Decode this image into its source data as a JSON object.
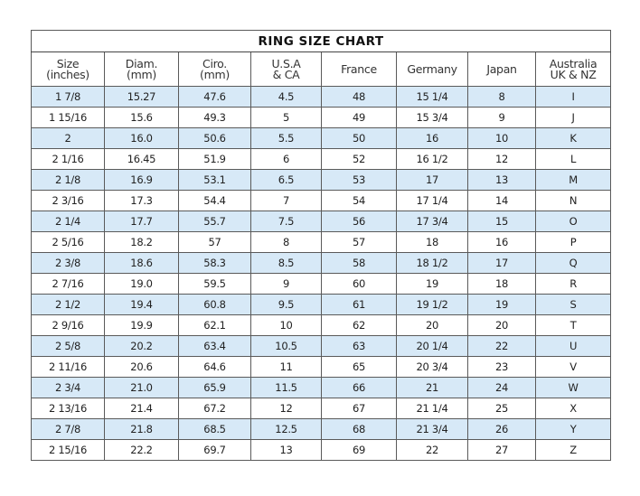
{
  "title": "RING SIZE CHART",
  "headers": [
    [
      "Size",
      "(inches)"
    ],
    [
      "Diam.",
      "(mm)"
    ],
    [
      "Ciro.",
      "(mm)"
    ],
    [
      "U.S.A",
      "& CA"
    ],
    [
      "France"
    ],
    [
      "Germany"
    ],
    [
      "Japan"
    ],
    [
      "Australia",
      "UK & NZ"
    ]
  ],
  "row_highlight_color": "#d7e9f7",
  "rows": [
    [
      "1 7/8",
      "15.27",
      "47.6",
      "4.5",
      "48",
      "15 1/4",
      "8",
      "I"
    ],
    [
      "1 15/16",
      "15.6",
      "49.3",
      "5",
      "49",
      "15 3/4",
      "9",
      "J"
    ],
    [
      "2",
      "16.0",
      "50.6",
      "5.5",
      "50",
      "16",
      "10",
      "K"
    ],
    [
      "2 1/16",
      "16.45",
      "51.9",
      "6",
      "52",
      "16 1/2",
      "12",
      "L"
    ],
    [
      "2 1/8",
      "16.9",
      "53.1",
      "6.5",
      "53",
      "17",
      "13",
      "M"
    ],
    [
      "2 3/16",
      "17.3",
      "54.4",
      "7",
      "54",
      "17 1/4",
      "14",
      "N"
    ],
    [
      "2 1/4",
      "17.7",
      "55.7",
      "7.5",
      "56",
      "17 3/4",
      "15",
      "O"
    ],
    [
      "2 5/16",
      "18.2",
      "57",
      "8",
      "57",
      "18",
      "16",
      "P"
    ],
    [
      "2 3/8",
      "18.6",
      "58.3",
      "8.5",
      "58",
      "18 1/2",
      "17",
      "Q"
    ],
    [
      "2 7/16",
      "19.0",
      "59.5",
      "9",
      "60",
      "19",
      "18",
      "R"
    ],
    [
      "2 1/2",
      "19.4",
      "60.8",
      "9.5",
      "61",
      "19 1/2",
      "19",
      "S"
    ],
    [
      "2 9/16",
      "19.9",
      "62.1",
      "10",
      "62",
      "20",
      "20",
      "T"
    ],
    [
      "2 5/8",
      "20.2",
      "63.4",
      "10.5",
      "63",
      "20 1/4",
      "22",
      "U"
    ],
    [
      "2 11/16",
      "20.6",
      "64.6",
      "11",
      "65",
      "20 3/4",
      "23",
      "V"
    ],
    [
      "2 3/4",
      "21.0",
      "65.9",
      "11.5",
      "66",
      "21",
      "24",
      "W"
    ],
    [
      "2 13/16",
      "21.4",
      "67.2",
      "12",
      "67",
      "21 1/4",
      "25",
      "X"
    ],
    [
      "2 7/8",
      "21.8",
      "68.5",
      "12.5",
      "68",
      "21 3/4",
      "26",
      "Y"
    ],
    [
      "2 15/16",
      "22.2",
      "69.7",
      "13",
      "69",
      "22",
      "27",
      "Z"
    ]
  ]
}
